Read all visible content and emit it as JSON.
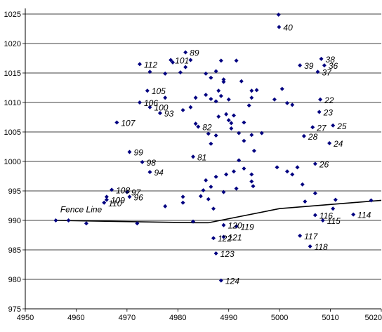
{
  "chart_data": {
    "type": "scatter",
    "title": "",
    "xlabel": "",
    "ylabel": "",
    "xlim": [
      4950,
      5020
    ],
    "ylim": [
      975,
      1025
    ],
    "xticks": [
      4950,
      4960,
      4970,
      4980,
      4990,
      5000,
      5010,
      5020
    ],
    "yticks": [
      975,
      980,
      985,
      990,
      995,
      1000,
      1005,
      1010,
      1015,
      1020,
      1025
    ],
    "horizontal_grid": true,
    "marker_color": "#000080",
    "line_color": "#000000",
    "points": [
      {
        "x": 4999.8,
        "y": 1024.9,
        "label": ""
      },
      {
        "x": 4999.9,
        "y": 1022.8,
        "label": "40"
      },
      {
        "x": 4981.5,
        "y": 1018.5,
        "label": "89"
      },
      {
        "x": 4978.6,
        "y": 1017.2,
        "label": "101"
      },
      {
        "x": 4972.5,
        "y": 1016.5,
        "label": "112"
      },
      {
        "x": 5008.2,
        "y": 1017.4,
        "label": "38"
      },
      {
        "x": 5004.0,
        "y": 1016.3,
        "label": "39"
      },
      {
        "x": 5008.8,
        "y": 1016.3,
        "label": "36"
      },
      {
        "x": 5007.5,
        "y": 1015.2,
        "label": "37"
      },
      {
        "x": 4981.5,
        "y": 1016.0,
        "label": ""
      },
      {
        "x": 4982.5,
        "y": 1017.2,
        "label": ""
      },
      {
        "x": 4980.5,
        "y": 1015.1,
        "label": ""
      },
      {
        "x": 4979.0,
        "y": 1016.8,
        "label": ""
      },
      {
        "x": 4974.5,
        "y": 1015.2,
        "label": ""
      },
      {
        "x": 4977.5,
        "y": 1014.9,
        "label": ""
      },
      {
        "x": 4985.5,
        "y": 1014.9,
        "label": ""
      },
      {
        "x": 4988.5,
        "y": 1017.1,
        "label": ""
      },
      {
        "x": 4991.5,
        "y": 1017.1,
        "label": ""
      },
      {
        "x": 4987.5,
        "y": 1015.3,
        "label": ""
      },
      {
        "x": 4986.5,
        "y": 1014.2,
        "label": ""
      },
      {
        "x": 4989.0,
        "y": 1013.5,
        "label": ""
      },
      {
        "x": 4989.0,
        "y": 1013.9,
        "label": ""
      },
      {
        "x": 4992.5,
        "y": 1013.6,
        "label": ""
      },
      {
        "x": 4994.5,
        "y": 1012.0,
        "label": ""
      },
      {
        "x": 4995.5,
        "y": 1012.1,
        "label": ""
      },
      {
        "x": 4988.0,
        "y": 1012.0,
        "label": ""
      },
      {
        "x": 4974.0,
        "y": 1012.0,
        "label": "105"
      },
      {
        "x": 4972.5,
        "y": 1010.0,
        "label": "106"
      },
      {
        "x": 4974.5,
        "y": 1009.2,
        "label": "100"
      },
      {
        "x": 4977.5,
        "y": 1010.8,
        "label": ""
      },
      {
        "x": 4976.5,
        "y": 1008.2,
        "label": "93"
      },
      {
        "x": 4983.5,
        "y": 1010.8,
        "label": ""
      },
      {
        "x": 4985.5,
        "y": 1011.3,
        "label": ""
      },
      {
        "x": 4986.5,
        "y": 1010.6,
        "label": ""
      },
      {
        "x": 4987.5,
        "y": 1010.2,
        "label": ""
      },
      {
        "x": 4988.5,
        "y": 1011.1,
        "label": ""
      },
      {
        "x": 4990.0,
        "y": 1010.5,
        "label": ""
      },
      {
        "x": 4981.0,
        "y": 1008.7,
        "label": ""
      },
      {
        "x": 4982.5,
        "y": 1009.2,
        "label": ""
      },
      {
        "x": 4994.0,
        "y": 1009.5,
        "label": ""
      },
      {
        "x": 4994.5,
        "y": 1010.8,
        "label": ""
      },
      {
        "x": 4999.0,
        "y": 1010.5,
        "label": ""
      },
      {
        "x": 5000.5,
        "y": 1012.3,
        "label": ""
      },
      {
        "x": 5001.5,
        "y": 1009.9,
        "label": ""
      },
      {
        "x": 5002.5,
        "y": 1009.6,
        "label": ""
      },
      {
        "x": 5008.0,
        "y": 1010.5,
        "label": "22"
      },
      {
        "x": 5007.8,
        "y": 1008.4,
        "label": "23"
      },
      {
        "x": 4988.0,
        "y": 1007.6,
        "label": ""
      },
      {
        "x": 4989.5,
        "y": 1008.0,
        "label": ""
      },
      {
        "x": 4990.0,
        "y": 1007.0,
        "label": ""
      },
      {
        "x": 4990.5,
        "y": 1006.5,
        "label": ""
      },
      {
        "x": 4991.0,
        "y": 1007.8,
        "label": ""
      },
      {
        "x": 4992.0,
        "y": 1004.8,
        "label": ""
      },
      {
        "x": 4993.0,
        "y": 1006.6,
        "label": ""
      },
      {
        "x": 4990.5,
        "y": 1005.6,
        "label": ""
      },
      {
        "x": 4986.0,
        "y": 1004.7,
        "label": ""
      },
      {
        "x": 4987.5,
        "y": 1004.4,
        "label": ""
      },
      {
        "x": 4986.5,
        "y": 1003.0,
        "label": ""
      },
      {
        "x": 4993.0,
        "y": 1003.5,
        "label": ""
      },
      {
        "x": 4994.5,
        "y": 1004.5,
        "label": ""
      },
      {
        "x": 4996.5,
        "y": 1004.8,
        "label": ""
      },
      {
        "x": 4968.0,
        "y": 1006.6,
        "label": "107"
      },
      {
        "x": 4983.5,
        "y": 1006.4,
        "label": ""
      },
      {
        "x": 4984.0,
        "y": 1005.9,
        "label": "82"
      },
      {
        "x": 5006.5,
        "y": 1005.8,
        "label": "27"
      },
      {
        "x": 5010.5,
        "y": 1006.1,
        "label": "25"
      },
      {
        "x": 5004.8,
        "y": 1004.3,
        "label": "28"
      },
      {
        "x": 5009.8,
        "y": 1003.1,
        "label": "24"
      },
      {
        "x": 4995.0,
        "y": 1001.8,
        "label": ""
      },
      {
        "x": 4983.0,
        "y": 1000.8,
        "label": "81"
      },
      {
        "x": 4970.5,
        "y": 1001.6,
        "label": "99"
      },
      {
        "x": 4973.0,
        "y": 999.9,
        "label": "98"
      },
      {
        "x": 4974.5,
        "y": 998.2,
        "label": "94"
      },
      {
        "x": 5007.0,
        "y": 999.6,
        "label": "26"
      },
      {
        "x": 4992.0,
        "y": 1000.2,
        "label": ""
      },
      {
        "x": 4993.0,
        "y": 998.8,
        "label": ""
      },
      {
        "x": 4991.0,
        "y": 998.3,
        "label": ""
      },
      {
        "x": 4989.5,
        "y": 997.8,
        "label": ""
      },
      {
        "x": 4987.5,
        "y": 997.4,
        "label": ""
      },
      {
        "x": 4985.5,
        "y": 996.8,
        "label": ""
      },
      {
        "x": 4994.5,
        "y": 997.8,
        "label": ""
      },
      {
        "x": 4994.5,
        "y": 996.6,
        "label": ""
      },
      {
        "x": 4994.8,
        "y": 995.8,
        "label": ""
      },
      {
        "x": 4999.5,
        "y": 999.0,
        "label": ""
      },
      {
        "x": 5001.5,
        "y": 998.3,
        "label": ""
      },
      {
        "x": 5002.5,
        "y": 997.8,
        "label": ""
      },
      {
        "x": 5003.5,
        "y": 999.0,
        "label": ""
      },
      {
        "x": 5004.5,
        "y": 996.1,
        "label": ""
      },
      {
        "x": 4991.5,
        "y": 995.4,
        "label": ""
      },
      {
        "x": 4986.5,
        "y": 995.7,
        "label": ""
      },
      {
        "x": 4985.0,
        "y": 995.1,
        "label": ""
      },
      {
        "x": 4986.0,
        "y": 993.6,
        "label": ""
      },
      {
        "x": 4989.0,
        "y": 994.8,
        "label": ""
      },
      {
        "x": 4981.0,
        "y": 994.0,
        "label": ""
      },
      {
        "x": 4981.0,
        "y": 993.0,
        "label": ""
      },
      {
        "x": 4984.5,
        "y": 994.1,
        "label": ""
      },
      {
        "x": 4987.0,
        "y": 992.0,
        "label": ""
      },
      {
        "x": 4977.5,
        "y": 992.4,
        "label": ""
      },
      {
        "x": 4967.0,
        "y": 995.2,
        "label": "108"
      },
      {
        "x": 4970.0,
        "y": 994.8,
        "label": "97"
      },
      {
        "x": 4966.0,
        "y": 994.0,
        "label": ""
      },
      {
        "x": 4966.0,
        "y": 993.5,
        "label": "109"
      },
      {
        "x": 4970.5,
        "y": 994.0,
        "label": "96"
      },
      {
        "x": 4965.5,
        "y": 993.0,
        "label": "110"
      },
      {
        "x": 5007.0,
        "y": 994.6,
        "label": ""
      },
      {
        "x": 5011.0,
        "y": 993.5,
        "label": ""
      },
      {
        "x": 5005.0,
        "y": 993.2,
        "label": ""
      },
      {
        "x": 5010.5,
        "y": 992.0,
        "label": ""
      },
      {
        "x": 5007.0,
        "y": 990.9,
        "label": "116"
      },
      {
        "x": 5008.5,
        "y": 990.0,
        "label": "115"
      },
      {
        "x": 5014.5,
        "y": 991.0,
        "label": "114"
      },
      {
        "x": 5018.0,
        "y": 993.4,
        "label": ""
      },
      {
        "x": 4956.0,
        "y": 990.0,
        "label": ""
      },
      {
        "x": 4958.5,
        "y": 990.0,
        "label": ""
      },
      {
        "x": 4962.0,
        "y": 989.5,
        "label": ""
      },
      {
        "x": 4972.0,
        "y": 989.5,
        "label": ""
      },
      {
        "x": 4983.0,
        "y": 989.8,
        "label": ""
      },
      {
        "x": 4989.0,
        "y": 989.2,
        "label": "120"
      },
      {
        "x": 4991.5,
        "y": 989.0,
        "label": "119"
      },
      {
        "x": 4987.0,
        "y": 987.0,
        "label": "122"
      },
      {
        "x": 4989.0,
        "y": 987.2,
        "label": "121"
      },
      {
        "x": 5004.0,
        "y": 987.4,
        "label": "117"
      },
      {
        "x": 5006.0,
        "y": 985.6,
        "label": "118"
      },
      {
        "x": 4987.5,
        "y": 984.4,
        "label": "123"
      },
      {
        "x": 4988.5,
        "y": 979.8,
        "label": "124"
      }
    ],
    "series": [
      {
        "name": "Fence Line",
        "type": "line",
        "x": [
          4956,
          4983.5,
          4986,
          5000,
          5020
        ],
        "y": [
          990.0,
          989.6,
          989.6,
          992.0,
          993.4
        ]
      }
    ],
    "annotations": [
      {
        "text": "Fence Line",
        "x": 4955.5,
        "y": 991.7
      }
    ]
  }
}
